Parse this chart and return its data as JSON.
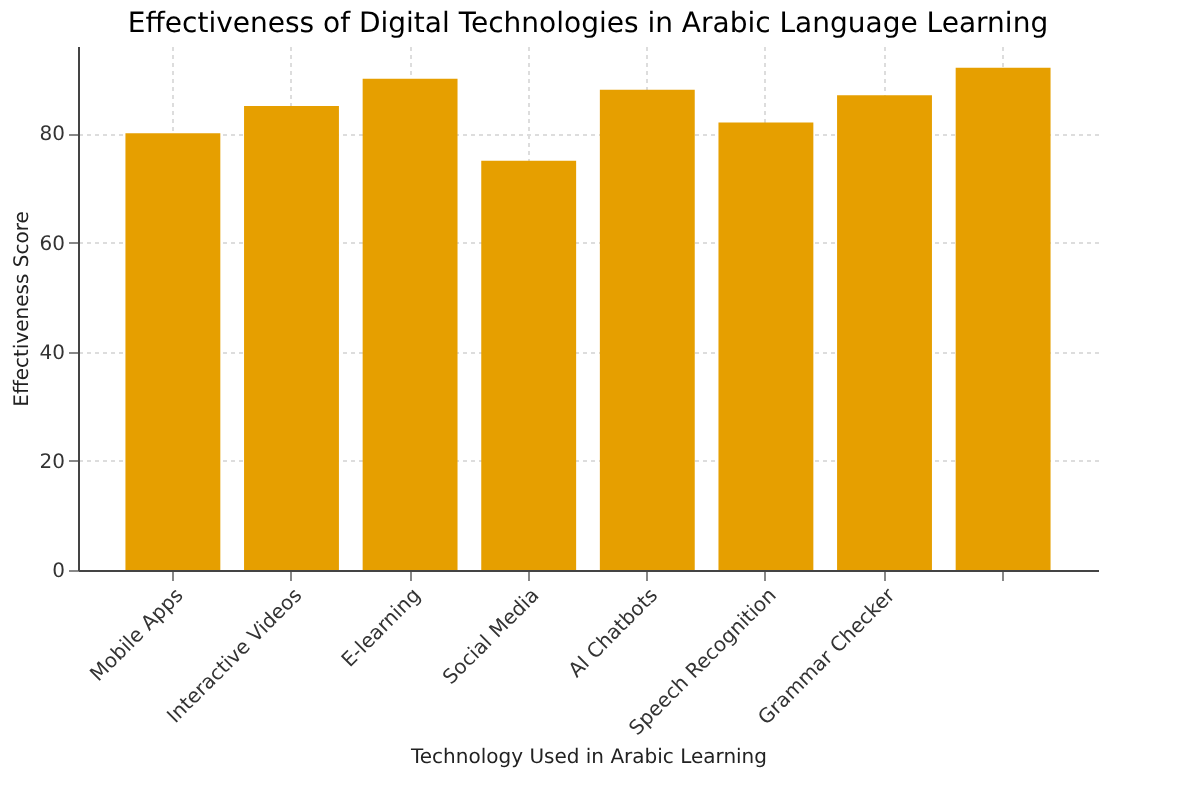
{
  "chart_data": {
    "type": "bar",
    "title": "Effectiveness of Digital Technologies in Arabic Language Learning",
    "xlabel": "Technology Used in Arabic Learning",
    "ylabel": "Effectiveness Score",
    "categories": [
      "Mobile Apps",
      "Interactive Videos",
      "E-learning",
      "Social Media",
      "AI Chatbots",
      "Speech Recognition",
      "Grammar Checker",
      null
    ],
    "values": [
      80,
      85,
      90,
      75,
      88,
      82,
      87,
      92
    ],
    "color": "#e69f00",
    "ylim": [
      0,
      96
    ],
    "yticks": [
      0,
      20,
      40,
      60,
      80
    ],
    "grid": true
  }
}
